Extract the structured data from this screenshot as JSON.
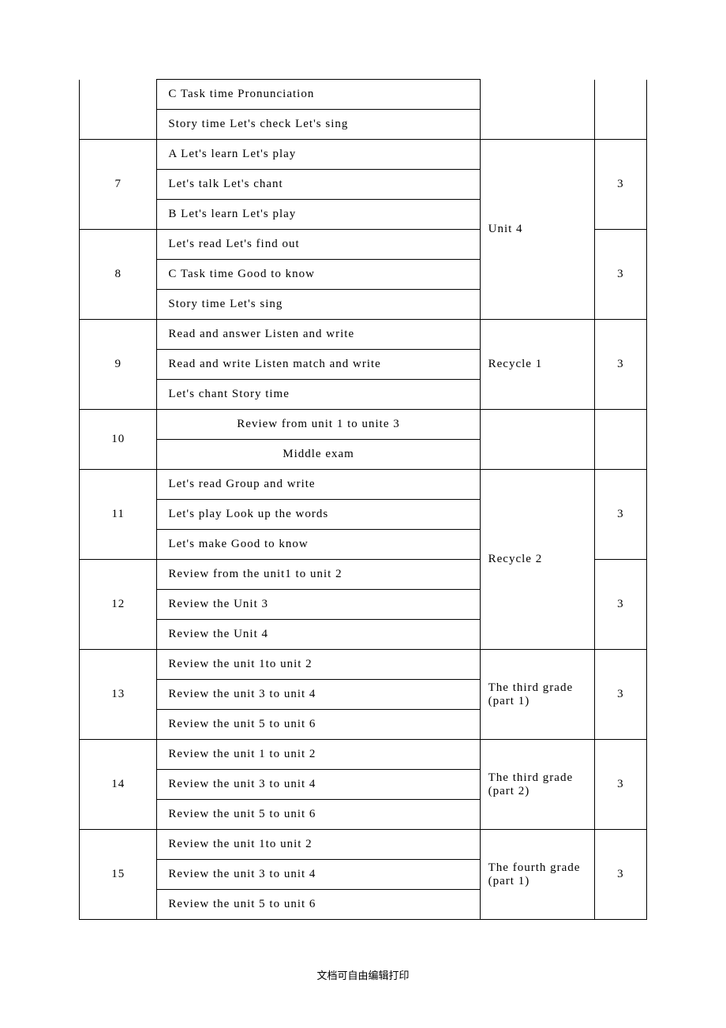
{
  "rows": [
    {
      "week": "",
      "contents": [
        "C Task time  Pronunciation",
        "  Story time  Let's check  Let's sing"
      ],
      "unit": "",
      "hours": "",
      "weekTopOpen": true,
      "unitTopOpen": true,
      "hoursTopOpen": true
    },
    {
      "week": "7",
      "contents": [
        "A  Let's  learn Let's play",
        "   Let's talk  Let's chant",
        "B  Let's  learn Let's play"
      ],
      "unit": "Unit 4",
      "unitSpan": 2,
      "hours": "3"
    },
    {
      "week": "8",
      "contents": [
        "   Let's read Let's find out",
        "C  Task time  Good to know",
        "   Story time  Let's sing"
      ],
      "hours": "3"
    },
    {
      "week": "9",
      "contents": [
        "Read and  answer  Listen and write",
        "Read  and write   Listen  match and write",
        "      Let's chant  Story time"
      ],
      "unit": "Recycle 1",
      "hours": "3"
    },
    {
      "week": "10",
      "contents": [
        "Review from unit 1 to unite 3",
        "Middle exam"
      ],
      "contentsCenter": true,
      "unit": "",
      "hours": ""
    },
    {
      "week": "11",
      "contents": [
        "Let's read   Group and write",
        "Let's play   Look up the words",
        "Let's make   Good to know"
      ],
      "unit": "Recycle 2",
      "unitSpan": 2,
      "hours": "3"
    },
    {
      "week": "12",
      "contents": [
        "Review from the unit1 to unit 2",
        "Review the Unit 3",
        "Review the Unit 4"
      ],
      "hours": "3"
    },
    {
      "week": "13",
      "contents": [
        "Review the unit 1to  unit 2",
        "Review the unit 3 to  unit 4",
        "Review the unit 5 to  unit 6"
      ],
      "unit": "The   third grade  (part 1)",
      "hours": "3"
    },
    {
      "week": "14",
      "contents": [
        "Review  the unit 1 to  unit 2",
        "Review the unit 3 to  unit 4",
        "Review the unit 5 to  unit 6"
      ],
      "unit": "The third grade (part 2)",
      "hours": "3"
    },
    {
      "week": "15",
      "contents": [
        "Review the unit 1to  unit 2",
        "Review the unit 3 to  unit 4",
        "Review the unit 5 to unit 6"
      ],
      "unit": "The fourth grade (part 1)",
      "hours": "3"
    }
  ],
  "footer": "文档可自由编辑打印"
}
